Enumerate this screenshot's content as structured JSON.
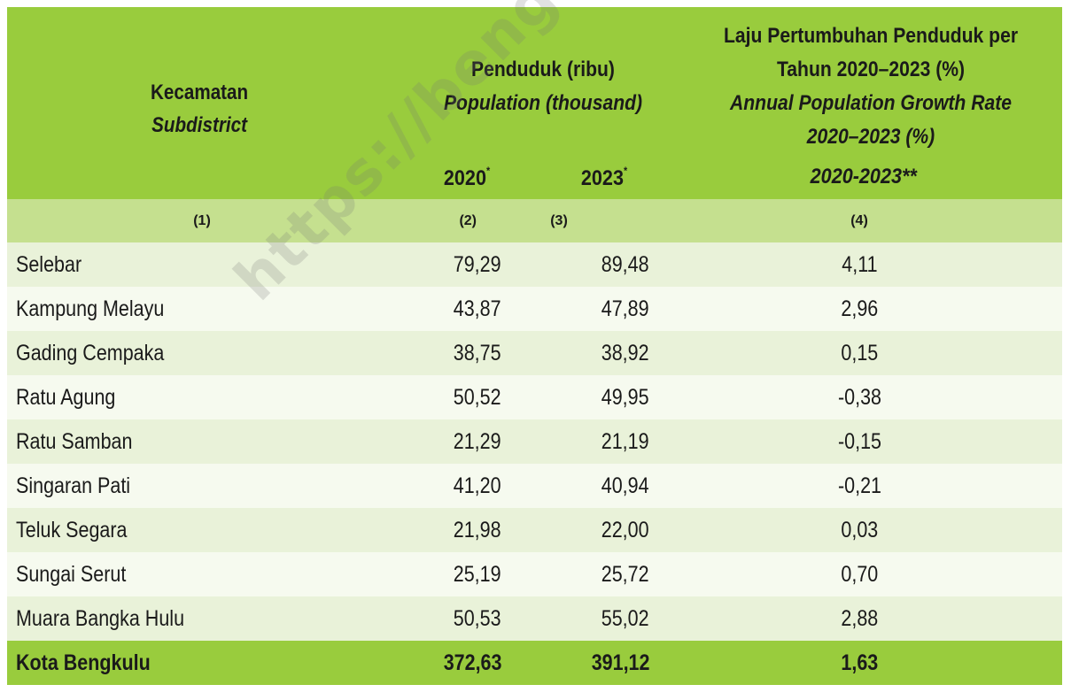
{
  "header": {
    "subdistrict_id": "Kecamatan",
    "subdistrict_en": "Subdistrict",
    "population_id": "Penduduk (ribu)",
    "population_en": "Population (thousand)",
    "rate_id_1": "Laju Pertumbuhan Penduduk per",
    "rate_id_2": "Tahun 2020–2023 (%)",
    "rate_en_1": "Annual Population Growth Rate",
    "rate_en_2": "2020–2023 (%)",
    "year_2020": "2020",
    "year_2023": "2023",
    "star": "*",
    "year_rate": "2020-2023**"
  },
  "column_numbers": [
    "(1)",
    "(2)",
    "(3)",
    "(4)"
  ],
  "rows": [
    {
      "name": "Selebar",
      "pop2020": "79,29",
      "pop2023": "89,48",
      "rate": "4,11"
    },
    {
      "name": "Kampung Melayu",
      "pop2020": "43,87",
      "pop2023": "47,89",
      "rate": "2,96"
    },
    {
      "name": "Gading Cempaka",
      "pop2020": "38,75",
      "pop2023": "38,92",
      "rate": "0,15"
    },
    {
      "name": "Ratu Agung",
      "pop2020": "50,52",
      "pop2023": "49,95",
      "rate": "-0,38"
    },
    {
      "name": "Ratu Samban",
      "pop2020": "21,29",
      "pop2023": "21,19",
      "rate": "-0,15"
    },
    {
      "name": "Singaran Pati",
      "pop2020": "41,20",
      "pop2023": "40,94",
      "rate": "-0,21"
    },
    {
      "name": "Teluk Segara",
      "pop2020": "21,98",
      "pop2023": "22,00",
      "rate": "0,03"
    },
    {
      "name": "Sungai Serut",
      "pop2020": "25,19",
      "pop2023": "25,72",
      "rate": "0,70"
    },
    {
      "name": "Muara Bangka Hulu",
      "pop2020": "50,53",
      "pop2023": "55,02",
      "rate": "2,88"
    }
  ],
  "total": {
    "name": "Kota Bengkulu",
    "pop2020": "372,63",
    "pop2023": "391,12",
    "rate": "1,63"
  },
  "watermark": "https://bengkulukota.bps.go.id",
  "colors": {
    "header_green": "#99cc3d",
    "number_row_green": "#c5e08f",
    "row_light": "#e9f2d9",
    "row_lighter": "#f6faef"
  }
}
